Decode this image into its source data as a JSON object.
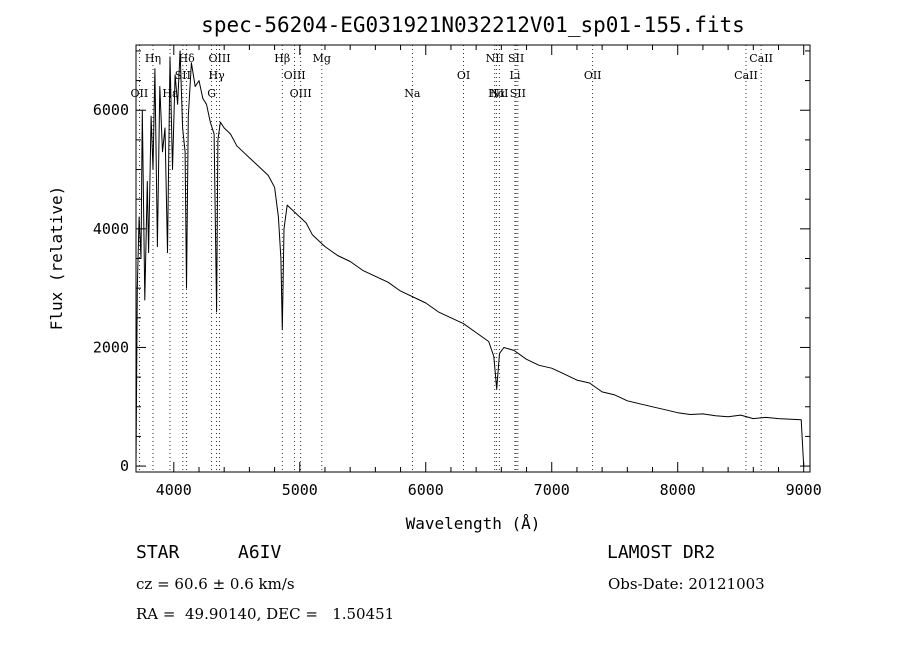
{
  "chart_data": {
    "type": "line",
    "title": "spec-56204-EG031921N032212V01_sp01-155.fits",
    "xlabel": "Wavelength (Å)",
    "ylabel": "Flux (relative)",
    "xlim": [
      3700,
      9050
    ],
    "ylim": [
      -100,
      7100
    ],
    "x_ticks": [
      4000,
      5000,
      6000,
      7000,
      8000,
      9000
    ],
    "y_ticks": [
      0,
      2000,
      4000,
      6000
    ],
    "grid": false,
    "series": [
      {
        "x": [
          3700,
          3710,
          3725,
          3740,
          3750,
          3770,
          3790,
          3800,
          3820,
          3835,
          3850,
          3870,
          3889,
          3910,
          3930,
          3950,
          3970,
          3990,
          4010,
          4030,
          4050,
          4070,
          4090,
          4101,
          4115,
          4140,
          4170,
          4200,
          4230,
          4260,
          4290,
          4320,
          4340,
          4350,
          4370,
          4400,
          4450,
          4500,
          4550,
          4600,
          4650,
          4700,
          4750,
          4800,
          4830,
          4850,
          4861,
          4875,
          4900,
          4950,
          5000,
          5050,
          5100,
          5150,
          5200,
          5300,
          5400,
          5500,
          5600,
          5700,
          5800,
          5900,
          6000,
          6100,
          6200,
          6300,
          6400,
          6500,
          6540,
          6563,
          6585,
          6620,
          6700,
          6800,
          6900,
          7000,
          7100,
          7200,
          7300,
          7400,
          7500,
          7600,
          7700,
          7800,
          7900,
          8000,
          8100,
          8200,
          8300,
          8400,
          8500,
          8600,
          8700,
          8800,
          8900,
          8980,
          9000
        ],
        "values": [
          0,
          3000,
          4200,
          3500,
          6000,
          2800,
          4800,
          3600,
          5900,
          5000,
          6700,
          3700,
          6400,
          5300,
          5700,
          3600,
          6900,
          5000,
          6600,
          6100,
          7000,
          5700,
          5300,
          3000,
          5900,
          6800,
          6400,
          6500,
          6200,
          6100,
          5800,
          5600,
          2600,
          5500,
          5800,
          5700,
          5600,
          5400,
          5300,
          5200,
          5100,
          5000,
          4900,
          4700,
          4200,
          3500,
          2300,
          4000,
          4400,
          4300,
          4200,
          4100,
          3900,
          3800,
          3700,
          3550,
          3450,
          3300,
          3200,
          3100,
          2950,
          2850,
          2750,
          2600,
          2500,
          2400,
          2250,
          2100,
          1850,
          1300,
          1900,
          2000,
          1950,
          1800,
          1700,
          1650,
          1550,
          1450,
          1400,
          1250,
          1200,
          1100,
          1050,
          1000,
          950,
          900,
          870,
          880,
          850,
          830,
          860,
          800,
          820,
          800,
          790,
          780,
          0
        ]
      }
    ],
    "line_markers": [
      {
        "label": "Hα",
        "x": 6563,
        "row": 3
      },
      {
        "label": "Hβ",
        "x": 4861,
        "row": 1
      },
      {
        "label": "Hγ",
        "x": 4340,
        "row": 2
      },
      {
        "label": "Hδ",
        "x": 4102,
        "row": 1
      },
      {
        "label": "Hε",
        "x": 3970,
        "row": 3
      },
      {
        "label": "Hη",
        "x": 3835,
        "row": 1
      },
      {
        "label": "OII",
        "x": 3727,
        "row": 3
      },
      {
        "label": "SII",
        "x": 4072,
        "row": 2
      },
      {
        "label": "G",
        "x": 4300,
        "row": 3
      },
      {
        "label": "OIII",
        "x": 4363,
        "row": 1
      },
      {
        "label": "OIII",
        "x": 4959,
        "row": 2
      },
      {
        "label": "OIII",
        "x": 5007,
        "row": 3
      },
      {
        "label": "Mg",
        "x": 5175,
        "row": 1
      },
      {
        "label": "Na",
        "x": 5894,
        "row": 3
      },
      {
        "label": "OI",
        "x": 6300,
        "row": 2
      },
      {
        "label": "NII",
        "x": 6548,
        "row": 1
      },
      {
        "label": "NII",
        "x": 6584,
        "row": 3
      },
      {
        "label": "SII",
        "x": 6717,
        "row": 1
      },
      {
        "label": "SII",
        "x": 6731,
        "row": 3
      },
      {
        "label": "Li",
        "x": 6708,
        "row": 2
      },
      {
        "label": "OII",
        "x": 7325,
        "row": 2
      },
      {
        "label": "CaII",
        "x": 8542,
        "row": 2
      },
      {
        "label": "CaII",
        "x": 8662,
        "row": 1
      }
    ]
  },
  "info": {
    "object_class": "STAR",
    "subclass": "A6IV",
    "survey": "LAMOST DR2",
    "cz": "cz = 60.6 ± 0.6 km/s",
    "obs_date": "Obs-Date: 20121003",
    "coords": "RA =  49.90140, DEC =   1.50451"
  }
}
